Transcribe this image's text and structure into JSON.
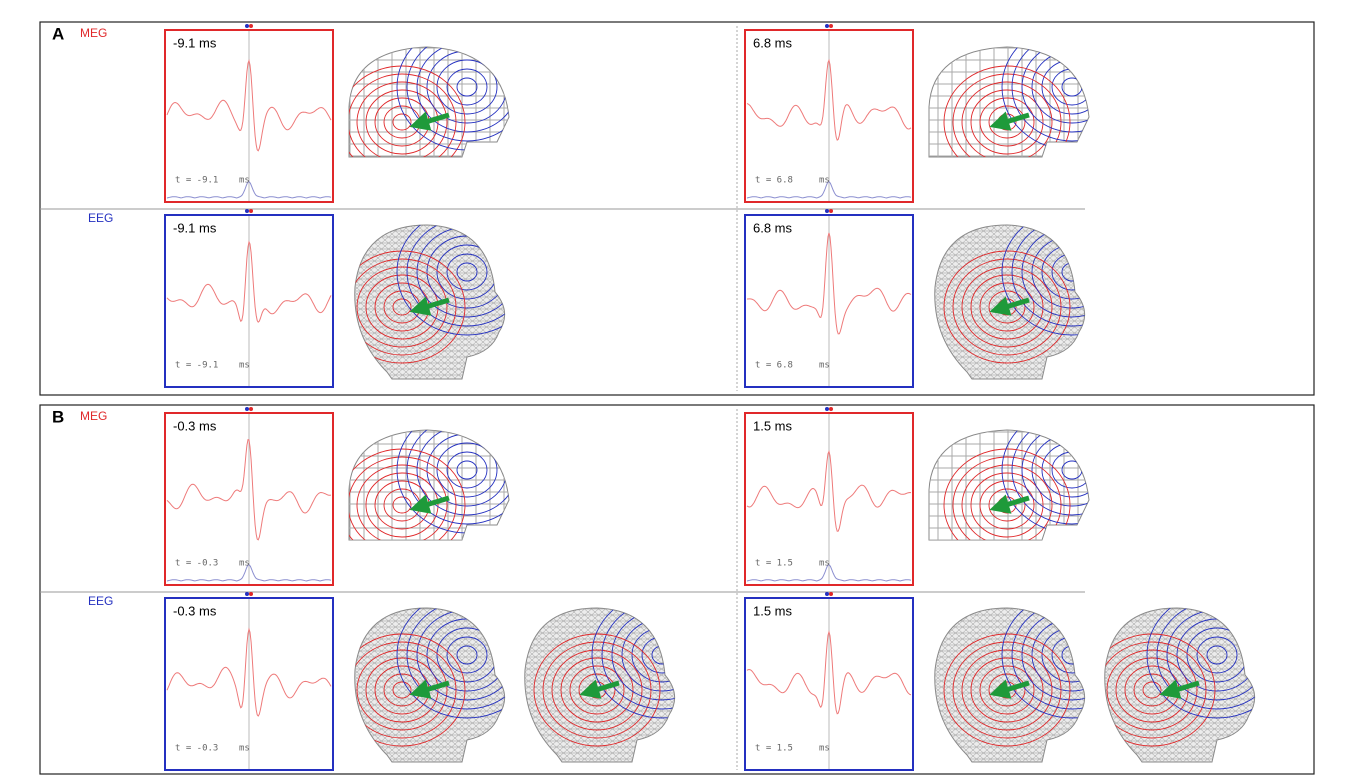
{
  "panels": [
    {
      "label": "A",
      "rows": [
        {
          "modality": "MEG",
          "plots": [
            {
              "time": "-9.1 ms",
              "cursor": "t = -9.1",
              "unit": "ms"
            },
            {
              "time": "6.8 ms",
              "cursor": "t = 6.8",
              "unit": "ms"
            }
          ]
        },
        {
          "modality": "EEG",
          "plots": [
            {
              "time": "-9.1 ms",
              "cursor": "t = -9.1",
              "unit": "ms"
            },
            {
              "time": "6.8 ms",
              "cursor": "t = 6.8",
              "unit": "ms"
            }
          ]
        }
      ]
    },
    {
      "label": "B",
      "rows": [
        {
          "modality": "MEG",
          "plots": [
            {
              "time": "-0.3 ms",
              "cursor": "t = -0.3",
              "unit": "ms"
            },
            {
              "time": "1.5 ms",
              "cursor": "t = 1.5",
              "unit": "ms"
            }
          ]
        },
        {
          "modality": "EEG",
          "plots": [
            {
              "time": "-0.3 ms",
              "cursor": "t = -0.3",
              "unit": "ms"
            },
            {
              "time": "1.5 ms",
              "cursor": "t = 1.5",
              "unit": "ms"
            }
          ]
        }
      ]
    }
  ]
}
